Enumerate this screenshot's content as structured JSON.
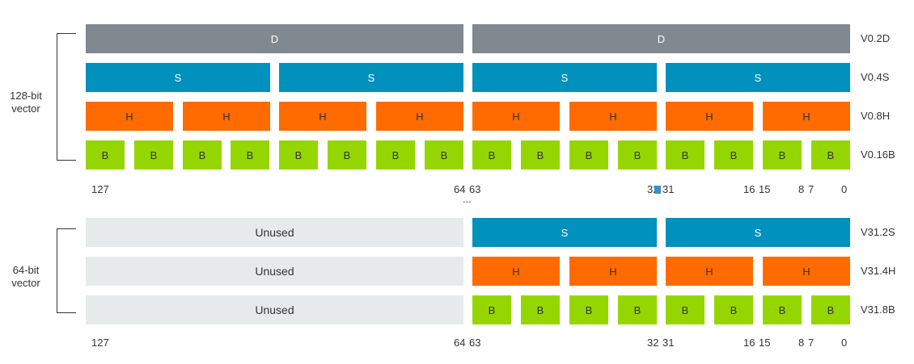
{
  "groups": {
    "g128": {
      "label_line1": "128-bit",
      "label_line2": "vector"
    },
    "g64": {
      "label_line1": "64-bit",
      "label_line2": "vector"
    }
  },
  "lanes": {
    "d": "D",
    "s": "S",
    "h": "H",
    "b": "B",
    "unused": "Unused"
  },
  "rows": {
    "v0_2d": "V0.2D",
    "v0_4s": "V0.4S",
    "v0_8h": "V0.8H",
    "v0_16b": "V0.16B",
    "v31_2s": "V31.2S",
    "v31_4h": "V31.4H",
    "v31_8b": "V31.8B"
  },
  "bits": {
    "b127": "127",
    "b64": "64",
    "b63": "63",
    "b32": "32",
    "b31": "31",
    "b16": "16",
    "b15": "15",
    "b8": "8",
    "b7": "7",
    "b0": "0"
  },
  "ellipsis": "...",
  "colors": {
    "double": "#808890",
    "single": "#0091bd",
    "half": "#ff6b00",
    "byte": "#95d600",
    "unused": "#e6eaeb",
    "marker": "#3a8fd0"
  }
}
